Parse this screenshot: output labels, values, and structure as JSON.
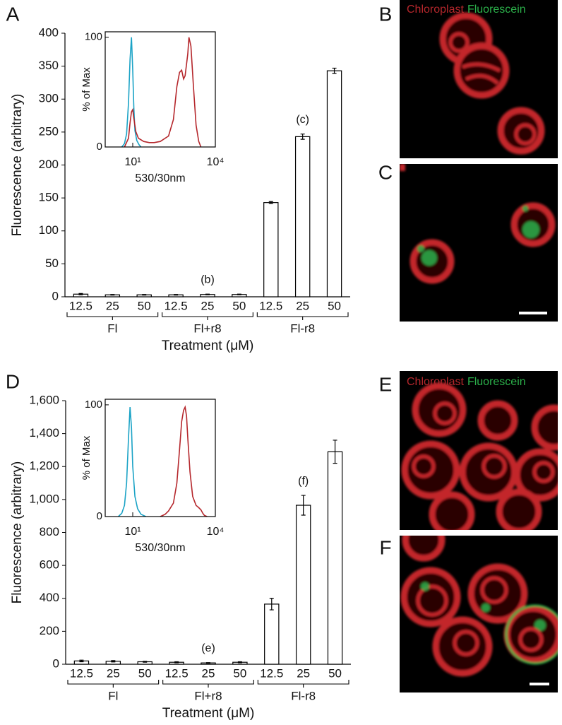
{
  "chart_data": [
    {
      "type": "bar",
      "panel_label": "A",
      "ylabel": "Fluorescence (arbitrary)",
      "xlabel": "Treatment (μM)",
      "categories": [
        "12.5",
        "25",
        "50",
        "12.5",
        "25",
        "50",
        "12.5",
        "25",
        "50"
      ],
      "group_labels": [
        "Fl",
        "Fl+r8",
        "Fl-r8"
      ],
      "values": [
        4,
        3,
        3,
        3,
        3.5,
        3.5,
        143,
        243,
        343
      ],
      "errors": [
        1,
        0.5,
        0.5,
        0.5,
        0.5,
        0.5,
        1.5,
        4,
        4
      ],
      "value_annotations": [
        null,
        null,
        null,
        null,
        "(b)",
        null,
        null,
        "(c)",
        null
      ],
      "color": "#ffffff",
      "edge_color": "#000000",
      "ylim": [
        0,
        400
      ],
      "yticks": [
        0,
        50,
        100,
        150,
        200,
        250,
        300,
        350,
        400
      ],
      "inset": {
        "type": "line",
        "ylabel": "% of Max",
        "xlabel": "530/30nm",
        "log_x": true,
        "xlim": [
          1,
          10000
        ],
        "xticks": [
          {
            "value": 10,
            "label": "10¹"
          },
          {
            "value": 10000,
            "label": "10⁴"
          }
        ],
        "ylim": [
          0,
          105
        ],
        "yticks": [
          0,
          100
        ],
        "series": [
          {
            "color": "#1ba3c6",
            "x": [
              4,
              5,
              6,
              7,
              8,
              9,
              10,
              11,
              12,
              14,
              17,
              20
            ],
            "values": [
              0,
              3,
              12,
              40,
              80,
              100,
              70,
              35,
              15,
              6,
              2,
              0
            ]
          },
          {
            "color": "#b5272c",
            "x": [
              5,
              7,
              8,
              9,
              10,
              11,
              13,
              16,
              25,
              40,
              60,
              100,
              200,
              300,
              400,
              500,
              600,
              700,
              800,
              1000,
              1100,
              1300,
              1600,
              2000,
              2500,
              3000
            ],
            "values": [
              0,
              8,
              22,
              32,
              34,
              26,
              14,
              8,
              5,
              4,
              4,
              5,
              10,
              25,
              55,
              68,
              70,
              62,
              65,
              85,
              100,
              92,
              55,
              20,
              5,
              0
            ]
          }
        ]
      }
    },
    {
      "type": "bar",
      "panel_label": "D",
      "ylabel": "Fluorescence (arbitrary)",
      "xlabel": "Treatment (μM)",
      "categories": [
        "12.5",
        "25",
        "50",
        "12.5",
        "25",
        "50",
        "12.5",
        "25",
        "50"
      ],
      "group_labels": [
        "Fl",
        "Fl+r8",
        "Fl-r8"
      ],
      "values": [
        20,
        18,
        15,
        12,
        8,
        12,
        365,
        965,
        1290
      ],
      "errors": [
        5,
        4,
        3,
        3,
        2,
        3,
        35,
        60,
        70
      ],
      "value_annotations": [
        null,
        null,
        null,
        null,
        "(e)",
        null,
        null,
        "(f)",
        null
      ],
      "color": "#ffffff",
      "edge_color": "#000000",
      "ylim": [
        0,
        1600
      ],
      "yticks": [
        0,
        200,
        400,
        600,
        800,
        {
          "value": 1000,
          "label": "1,000"
        },
        {
          "value": 1200,
          "label": "1,200"
        },
        {
          "value": 1400,
          "label": "1,400"
        },
        {
          "value": 1600,
          "label": "1,600"
        }
      ],
      "inset": {
        "type": "line",
        "ylabel": "% of Max",
        "xlabel": "530/30nm",
        "log_x": true,
        "xlim": [
          1,
          10000
        ],
        "xticks": [
          {
            "value": 10,
            "label": "10¹"
          },
          {
            "value": 10000,
            "label": "10⁴"
          }
        ],
        "ylim": [
          0,
          105
        ],
        "yticks": [
          0,
          100
        ],
        "series": [
          {
            "color": "#1ba3c6",
            "x": [
              3,
              4,
              5,
              6,
              7,
              8,
              9,
              10,
              12,
              15,
              20,
              30
            ],
            "values": [
              0,
              3,
              10,
              30,
              70,
              98,
              80,
              45,
              18,
              7,
              2,
              0
            ]
          },
          {
            "color": "#b5272c",
            "x": [
              100,
              150,
              200,
              300,
              400,
              500,
              600,
              700,
              800,
              900,
              1000,
              1200,
              1500,
              2000,
              2500,
              3000,
              3500,
              4000,
              5000
            ],
            "values": [
              0,
              2,
              5,
              12,
              30,
              60,
              85,
              95,
              98,
              90,
              70,
              40,
              18,
              10,
              8,
              6,
              3,
              1,
              0
            ]
          }
        ]
      }
    }
  ],
  "image_panels": [
    {
      "label": "B",
      "channels": [
        {
          "name": "Chloroplast",
          "color": "#b5272c"
        },
        {
          "name": "Fluorescein",
          "color": "#2bb04a"
        }
      ]
    },
    {
      "label": "C"
    },
    {
      "label": "E",
      "channels": [
        {
          "name": "Chloroplast",
          "color": "#b5272c"
        },
        {
          "name": "Fluorescein",
          "color": "#2bb04a"
        }
      ]
    },
    {
      "label": "F"
    }
  ]
}
